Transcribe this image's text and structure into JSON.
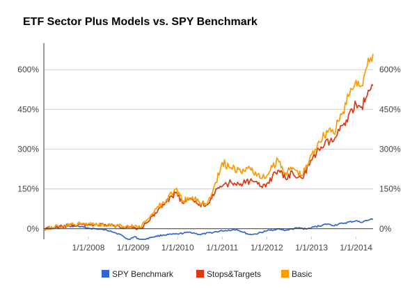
{
  "chart_data": {
    "type": "line",
    "title": "ETF Sector Plus Models vs. SPY Benchmark",
    "xlabel": "",
    "ylabel": "",
    "x_range": [
      "2007-01-01",
      "2014-05-20"
    ],
    "ylim": [
      -40,
      700
    ],
    "y_ticks": [
      0,
      150,
      300,
      450,
      600
    ],
    "y_tick_labels": [
      "0%",
      "150%",
      "300%",
      "450%",
      "600%"
    ],
    "x_ticks": [
      "2008-01-01",
      "2009-01-01",
      "2010-01-01",
      "2011-01-01",
      "2012-01-01",
      "2013-01-01",
      "2014-01-01"
    ],
    "x_tick_labels": [
      "1/1/2008",
      "1/1/2009",
      "1/1/2010",
      "1/1/2011",
      "1/1/2012",
      "1/1/2013",
      "1/1/2014"
    ],
    "legend_position": "bottom",
    "series": [
      {
        "name": "SPY Benchmark",
        "color": "#3366cc",
        "points": [
          [
            "2007-01-01",
            0
          ],
          [
            "2007-04-01",
            3
          ],
          [
            "2007-07-01",
            8
          ],
          [
            "2007-10-01",
            10
          ],
          [
            "2008-01-01",
            2
          ],
          [
            "2008-04-01",
            -2
          ],
          [
            "2008-07-01",
            -8
          ],
          [
            "2008-10-01",
            -25
          ],
          [
            "2008-11-20",
            -42
          ],
          [
            "2009-01-15",
            -30
          ],
          [
            "2009-03-09",
            -45
          ],
          [
            "2009-06-01",
            -32
          ],
          [
            "2009-09-01",
            -24
          ],
          [
            "2010-01-01",
            -20
          ],
          [
            "2010-04-15",
            -13
          ],
          [
            "2010-07-01",
            -22
          ],
          [
            "2010-10-01",
            -15
          ],
          [
            "2011-01-01",
            -8
          ],
          [
            "2011-05-01",
            -3
          ],
          [
            "2011-08-10",
            -22
          ],
          [
            "2011-10-03",
            -20
          ],
          [
            "2012-01-01",
            -8
          ],
          [
            "2012-04-01",
            -1
          ],
          [
            "2012-06-01",
            -6
          ],
          [
            "2012-09-15",
            3
          ],
          [
            "2012-11-15",
            -1
          ],
          [
            "2013-01-01",
            4
          ],
          [
            "2013-05-15",
            18
          ],
          [
            "2013-06-20",
            12
          ],
          [
            "2013-09-15",
            20
          ],
          [
            "2014-01-01",
            30
          ],
          [
            "2014-02-03",
            24
          ],
          [
            "2014-04-01",
            31
          ],
          [
            "2014-05-20",
            36
          ]
        ]
      },
      {
        "name": "Stops&Targets",
        "color": "#dc3912",
        "points": [
          [
            "2007-01-01",
            0
          ],
          [
            "2007-06-01",
            8
          ],
          [
            "2007-09-01",
            14
          ],
          [
            "2008-01-01",
            16
          ],
          [
            "2008-07-01",
            12
          ],
          [
            "2008-11-01",
            6
          ],
          [
            "2009-01-01",
            4
          ],
          [
            "2009-03-01",
            0
          ],
          [
            "2009-05-01",
            25
          ],
          [
            "2009-07-01",
            60
          ],
          [
            "2009-10-01",
            100
          ],
          [
            "2009-12-15",
            135
          ],
          [
            "2010-02-15",
            95
          ],
          [
            "2010-05-01",
            110
          ],
          [
            "2010-07-01",
            92
          ],
          [
            "2010-09-01",
            90
          ],
          [
            "2010-10-15",
            130
          ],
          [
            "2011-01-01",
            160
          ],
          [
            "2011-03-15",
            175
          ],
          [
            "2011-06-01",
            170
          ],
          [
            "2011-08-15",
            180
          ],
          [
            "2011-11-15",
            160
          ],
          [
            "2012-01-01",
            170
          ],
          [
            "2012-04-01",
            220
          ],
          [
            "2012-06-01",
            190
          ],
          [
            "2012-08-01",
            210
          ],
          [
            "2012-10-15",
            190
          ],
          [
            "2012-12-15",
            240
          ],
          [
            "2013-03-01",
            300
          ],
          [
            "2013-06-01",
            330
          ],
          [
            "2013-07-01",
            330
          ],
          [
            "2013-09-15",
            390
          ],
          [
            "2013-11-01",
            430
          ],
          [
            "2014-01-01",
            470
          ],
          [
            "2014-02-15",
            460
          ],
          [
            "2014-04-01",
            500
          ],
          [
            "2014-05-20",
            540
          ]
        ]
      },
      {
        "name": "Basic",
        "color": "#ff9900",
        "points": [
          [
            "2007-01-01",
            0
          ],
          [
            "2007-06-01",
            10
          ],
          [
            "2007-09-01",
            16
          ],
          [
            "2008-01-01",
            20
          ],
          [
            "2008-07-01",
            14
          ],
          [
            "2008-11-01",
            8
          ],
          [
            "2009-01-01",
            8
          ],
          [
            "2009-03-01",
            4
          ],
          [
            "2009-05-01",
            35
          ],
          [
            "2009-07-01",
            75
          ],
          [
            "2009-10-01",
            110
          ],
          [
            "2009-12-15",
            150
          ],
          [
            "2010-02-15",
            105
          ],
          [
            "2010-05-01",
            120
          ],
          [
            "2010-07-01",
            98
          ],
          [
            "2010-09-01",
            96
          ],
          [
            "2010-10-15",
            140
          ],
          [
            "2011-01-01",
            250
          ],
          [
            "2011-03-15",
            230
          ],
          [
            "2011-06-01",
            215
          ],
          [
            "2011-08-15",
            230
          ],
          [
            "2011-11-15",
            190
          ],
          [
            "2012-01-01",
            200
          ],
          [
            "2012-04-01",
            260
          ],
          [
            "2012-06-01",
            210
          ],
          [
            "2012-08-01",
            230
          ],
          [
            "2012-10-15",
            200
          ],
          [
            "2012-12-15",
            260
          ],
          [
            "2013-03-01",
            330
          ],
          [
            "2013-06-01",
            380
          ],
          [
            "2013-07-01",
            360
          ],
          [
            "2013-09-15",
            440
          ],
          [
            "2013-11-01",
            500
          ],
          [
            "2014-01-01",
            560
          ],
          [
            "2014-02-15",
            540
          ],
          [
            "2014-04-01",
            610
          ],
          [
            "2014-05-20",
            660
          ]
        ]
      }
    ]
  }
}
